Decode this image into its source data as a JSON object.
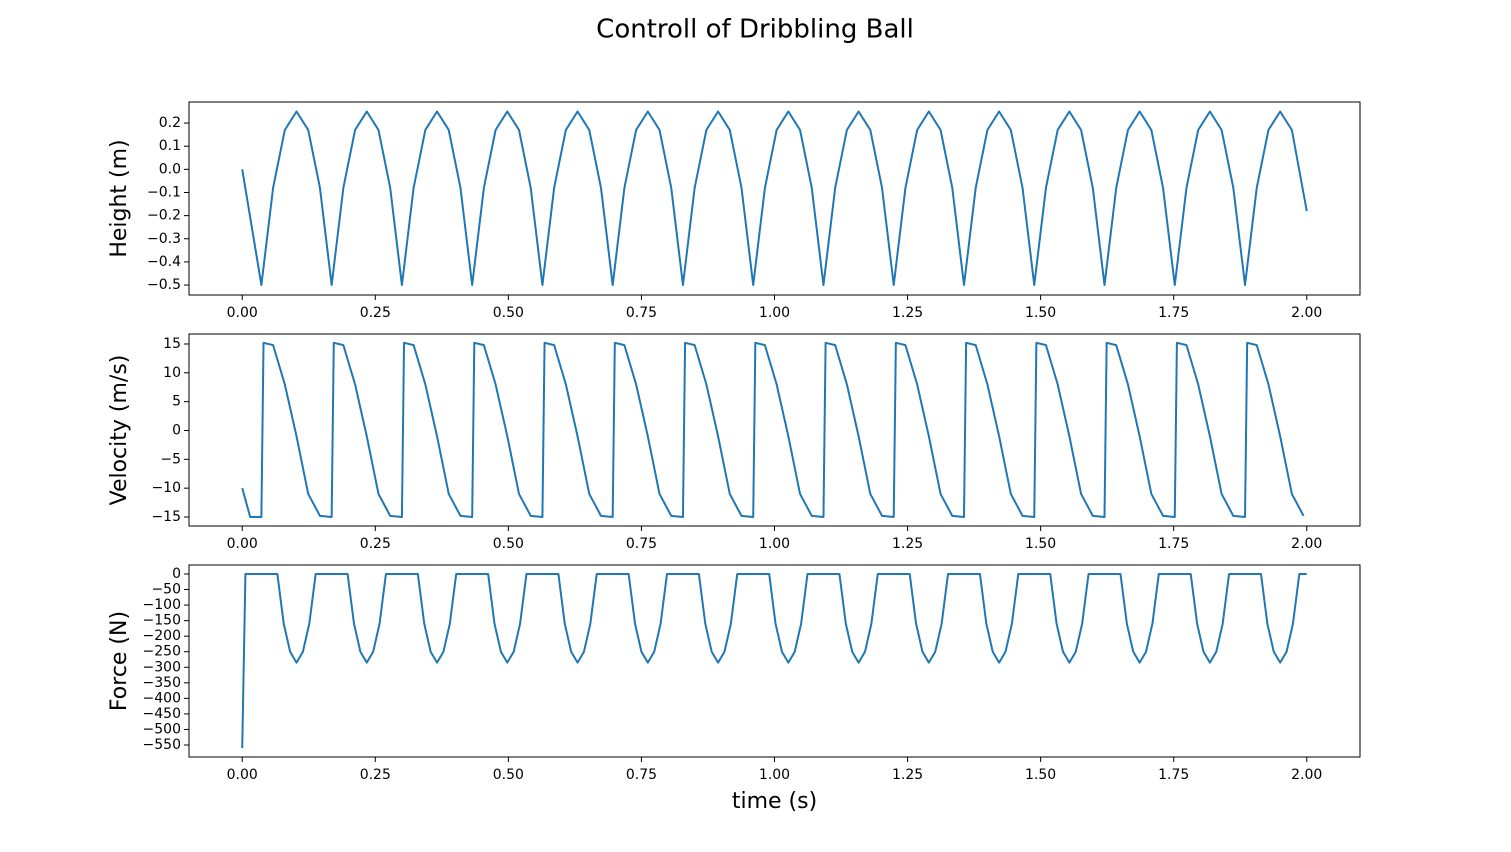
{
  "title": "Controll of Dribbling Ball",
  "chart_data": [
    {
      "type": "line",
      "ylabel": "Height (m)",
      "x": [
        0,
        0.036,
        0.058,
        0.08,
        0.102,
        0.124,
        0.146,
        0.168,
        0.19,
        0.212,
        0.234,
        0.256,
        0.278,
        0.3,
        0.322,
        0.344,
        0.366,
        0.388,
        0.41,
        0.432,
        0.454,
        0.476,
        0.498,
        0.52,
        0.542,
        0.564,
        0.586,
        0.608,
        0.63,
        0.652,
        0.674,
        0.696,
        0.718,
        0.74,
        0.762,
        0.784,
        0.806,
        0.828,
        0.85,
        0.872,
        0.894,
        0.916,
        0.938,
        0.96,
        0.982,
        1.004,
        1.026,
        1.048,
        1.07,
        1.092,
        1.114,
        1.136,
        1.158,
        1.18,
        1.202,
        1.224,
        1.246,
        1.268,
        1.29,
        1.312,
        1.334,
        1.356,
        1.378,
        1.4,
        1.422,
        1.444,
        1.466,
        1.488,
        1.51,
        1.532,
        1.554,
        1.576,
        1.598,
        1.62,
        1.642,
        1.664,
        1.686,
        1.708,
        1.73,
        1.752,
        1.774,
        1.796,
        1.818,
        1.84,
        1.862,
        1.884,
        1.906,
        1.928,
        1.95,
        1.972,
        2.0
      ],
      "series": [
        {
          "color": "#1f77b4",
          "values": [
            0,
            -0.5,
            -0.08,
            0.17,
            0.25,
            0.17,
            -0.08,
            -0.5,
            -0.08,
            0.17,
            0.25,
            0.17,
            -0.08,
            -0.5,
            -0.08,
            0.17,
            0.25,
            0.17,
            -0.08,
            -0.5,
            -0.08,
            0.17,
            0.25,
            0.17,
            -0.08,
            -0.5,
            -0.08,
            0.17,
            0.25,
            0.17,
            -0.08,
            -0.5,
            -0.08,
            0.17,
            0.25,
            0.17,
            -0.08,
            -0.5,
            -0.08,
            0.17,
            0.25,
            0.17,
            -0.08,
            -0.5,
            -0.08,
            0.17,
            0.25,
            0.17,
            -0.08,
            -0.5,
            -0.08,
            0.17,
            0.25,
            0.17,
            -0.08,
            -0.5,
            -0.08,
            0.17,
            0.25,
            0.17,
            -0.08,
            -0.5,
            -0.08,
            0.17,
            0.25,
            0.17,
            -0.08,
            -0.5,
            -0.08,
            0.17,
            0.25,
            0.17,
            -0.08,
            -0.5,
            -0.08,
            0.17,
            0.25,
            0.17,
            -0.08,
            -0.5,
            -0.08,
            0.17,
            0.25,
            0.17,
            -0.08,
            -0.5,
            -0.08,
            0.17,
            0.25,
            0.17,
            -0.18
          ]
        }
      ],
      "xlim": [
        -0.1,
        2.1
      ],
      "xticks": [
        {
          "value": 0,
          "label": "0.00"
        },
        {
          "value": 0.25,
          "label": "0.25"
        },
        {
          "value": 0.5,
          "label": "0.50"
        },
        {
          "value": 0.75,
          "label": "0.75"
        },
        {
          "value": 1,
          "label": "1.00"
        },
        {
          "value": 1.25,
          "label": "1.25"
        },
        {
          "value": 1.5,
          "label": "1.50"
        },
        {
          "value": 1.75,
          "label": "1.75"
        },
        {
          "value": 2,
          "label": "2.00"
        }
      ],
      "ylim": [
        -0.543,
        0.291
      ],
      "yticks": [
        {
          "value": -0.5,
          "label": "−0.5"
        },
        {
          "value": -0.4,
          "label": "−0.4"
        },
        {
          "value": -0.3,
          "label": "−0.3"
        },
        {
          "value": -0.2,
          "label": "−0.2"
        },
        {
          "value": -0.1,
          "label": "−0.1"
        },
        {
          "value": 0,
          "label": "0.0"
        },
        0.1,
        0.2
      ]
    },
    {
      "type": "line",
      "ylabel": "Velocity (m/s)",
      "x": [
        0,
        0.015,
        0.036,
        0.04,
        0.058,
        0.08,
        0.102,
        0.124,
        0.146,
        0.168,
        0.172,
        0.19,
        0.212,
        0.234,
        0.256,
        0.278,
        0.3,
        0.304,
        0.322,
        0.344,
        0.366,
        0.388,
        0.41,
        0.432,
        0.436,
        0.454,
        0.476,
        0.498,
        0.52,
        0.542,
        0.564,
        0.568,
        0.586,
        0.608,
        0.63,
        0.652,
        0.674,
        0.696,
        0.7,
        0.718,
        0.74,
        0.762,
        0.784,
        0.806,
        0.828,
        0.832,
        0.85,
        0.872,
        0.894,
        0.916,
        0.938,
        0.96,
        0.964,
        0.982,
        1.004,
        1.026,
        1.048,
        1.07,
        1.092,
        1.096,
        1.114,
        1.136,
        1.158,
        1.18,
        1.202,
        1.224,
        1.228,
        1.246,
        1.268,
        1.29,
        1.312,
        1.334,
        1.356,
        1.36,
        1.378,
        1.4,
        1.422,
        1.444,
        1.466,
        1.488,
        1.492,
        1.51,
        1.532,
        1.554,
        1.576,
        1.598,
        1.62,
        1.624,
        1.642,
        1.664,
        1.686,
        1.708,
        1.73,
        1.752,
        1.756,
        1.774,
        1.796,
        1.818,
        1.84,
        1.862,
        1.884,
        1.888,
        1.906,
        1.928,
        1.95,
        1.972,
        1.994
      ],
      "series": [
        {
          "color": "#1f77b4",
          "values": [
            -10,
            -15,
            -15,
            15.2,
            14.8,
            8,
            -1,
            -11,
            -14.8,
            -15,
            15.2,
            14.8,
            8,
            -1,
            -11,
            -14.8,
            -15,
            15.2,
            14.8,
            8,
            -1,
            -11,
            -14.8,
            -15,
            15.2,
            14.8,
            8,
            -1,
            -11,
            -14.8,
            -15,
            15.2,
            14.8,
            8,
            -1,
            -11,
            -14.8,
            -15,
            15.2,
            14.8,
            8,
            -1,
            -11,
            -14.8,
            -15,
            15.2,
            14.8,
            8,
            -1,
            -11,
            -14.8,
            -15,
            15.2,
            14.8,
            8,
            -1,
            -11,
            -14.8,
            -15,
            15.2,
            14.8,
            8,
            -1,
            -11,
            -14.8,
            -15,
            15.2,
            14.8,
            8,
            -1,
            -11,
            -14.8,
            -15,
            15.2,
            14.8,
            8,
            -1,
            -11,
            -14.8,
            -15,
            15.2,
            14.8,
            8,
            -1,
            -11,
            -14.8,
            -15,
            15.2,
            14.8,
            8,
            -1,
            -11,
            -14.8,
            -15,
            15.2,
            14.8,
            8,
            -1,
            -11,
            -14.8,
            -15,
            15.2,
            14.8,
            8,
            -1,
            -11,
            -14.8
          ]
        }
      ],
      "xlim": [
        -0.1,
        2.1
      ],
      "xticks": [
        {
          "value": 0,
          "label": "0.00"
        },
        {
          "value": 0.25,
          "label": "0.25"
        },
        {
          "value": 0.5,
          "label": "0.50"
        },
        {
          "value": 0.75,
          "label": "0.75"
        },
        {
          "value": 1,
          "label": "1.00"
        },
        {
          "value": 1.25,
          "label": "1.25"
        },
        {
          "value": 1.5,
          "label": "1.50"
        },
        {
          "value": 1.75,
          "label": "1.75"
        },
        {
          "value": 2,
          "label": "2.00"
        }
      ],
      "ylim": [
        -16.56,
        16.73
      ],
      "yticks": [
        {
          "value": -15,
          "label": "−15"
        },
        {
          "value": -10,
          "label": "−10"
        },
        {
          "value": -5,
          "label": "−5"
        },
        0,
        5,
        10,
        15
      ]
    },
    {
      "type": "line",
      "ylabel": "Force (N)",
      "xlabel": "time (s)",
      "x": [
        0,
        0.006,
        0.066,
        0.078,
        0.09,
        0.102,
        0.114,
        0.126,
        0.138,
        0.198,
        0.21,
        0.222,
        0.234,
        0.246,
        0.258,
        0.27,
        0.33,
        0.342,
        0.354,
        0.366,
        0.378,
        0.39,
        0.402,
        0.462,
        0.474,
        0.486,
        0.498,
        0.51,
        0.522,
        0.534,
        0.594,
        0.606,
        0.618,
        0.63,
        0.642,
        0.654,
        0.666,
        0.726,
        0.738,
        0.75,
        0.762,
        0.774,
        0.786,
        0.798,
        0.858,
        0.87,
        0.882,
        0.894,
        0.906,
        0.918,
        0.93,
        0.99,
        1.002,
        1.014,
        1.026,
        1.038,
        1.05,
        1.062,
        1.122,
        1.134,
        1.146,
        1.158,
        1.17,
        1.182,
        1.194,
        1.254,
        1.266,
        1.278,
        1.29,
        1.302,
        1.314,
        1.326,
        1.386,
        1.398,
        1.41,
        1.422,
        1.434,
        1.446,
        1.458,
        1.518,
        1.53,
        1.542,
        1.554,
        1.566,
        1.578,
        1.59,
        1.65,
        1.662,
        1.674,
        1.686,
        1.698,
        1.71,
        1.722,
        1.782,
        1.794,
        1.806,
        1.818,
        1.83,
        1.842,
        1.854,
        1.914,
        1.926,
        1.938,
        1.95,
        1.962,
        1.974,
        1.986,
        2.0
      ],
      "series": [
        {
          "color": "#1f77b4",
          "values": [
            -560,
            0,
            0,
            -160,
            -250,
            -285,
            -250,
            -160,
            0,
            0,
            -160,
            -250,
            -285,
            -250,
            -160,
            0,
            0,
            -160,
            -250,
            -285,
            -250,
            -160,
            0,
            0,
            -160,
            -250,
            -285,
            -250,
            -160,
            0,
            0,
            -160,
            -250,
            -285,
            -250,
            -160,
            0,
            0,
            -160,
            -250,
            -285,
            -250,
            -160,
            0,
            0,
            -160,
            -250,
            -285,
            -250,
            -160,
            0,
            0,
            -160,
            -250,
            -285,
            -250,
            -160,
            0,
            0,
            -160,
            -250,
            -285,
            -250,
            -160,
            0,
            0,
            -160,
            -250,
            -285,
            -250,
            -160,
            0,
            0,
            -160,
            -250,
            -285,
            -250,
            -160,
            0,
            0,
            -160,
            -250,
            -285,
            -250,
            -160,
            0,
            0,
            -160,
            -250,
            -285,
            -250,
            -160,
            0,
            0,
            -160,
            -250,
            -285,
            -250,
            -160,
            0,
            0,
            -160,
            -250,
            -285,
            -250,
            -160,
            0,
            0
          ]
        }
      ],
      "xlim": [
        -0.1,
        2.1
      ],
      "xticks": [
        {
          "value": 0,
          "label": "0.00"
        },
        {
          "value": 0.25,
          "label": "0.25"
        },
        {
          "value": 0.5,
          "label": "0.50"
        },
        {
          "value": 0.75,
          "label": "0.75"
        },
        {
          "value": 1,
          "label": "1.00"
        },
        {
          "value": 1.25,
          "label": "1.25"
        },
        {
          "value": 1.5,
          "label": "1.50"
        },
        {
          "value": 1.75,
          "label": "1.75"
        },
        {
          "value": 2,
          "label": "2.00"
        }
      ],
      "ylim": [
        -588.6,
        28.9
      ],
      "yticks": [
        {
          "value": -550,
          "label": "−550"
        },
        {
          "value": -500,
          "label": "−500"
        },
        {
          "value": -450,
          "label": "−450"
        },
        {
          "value": -400,
          "label": "−400"
        },
        {
          "value": -350,
          "label": "−350"
        },
        {
          "value": -300,
          "label": "−300"
        },
        {
          "value": -250,
          "label": "−250"
        },
        {
          "value": -200,
          "label": "−200"
        },
        {
          "value": -150,
          "label": "−150"
        },
        {
          "value": -100,
          "label": "−100"
        },
        {
          "value": -50,
          "label": "−50"
        },
        0
      ]
    }
  ]
}
